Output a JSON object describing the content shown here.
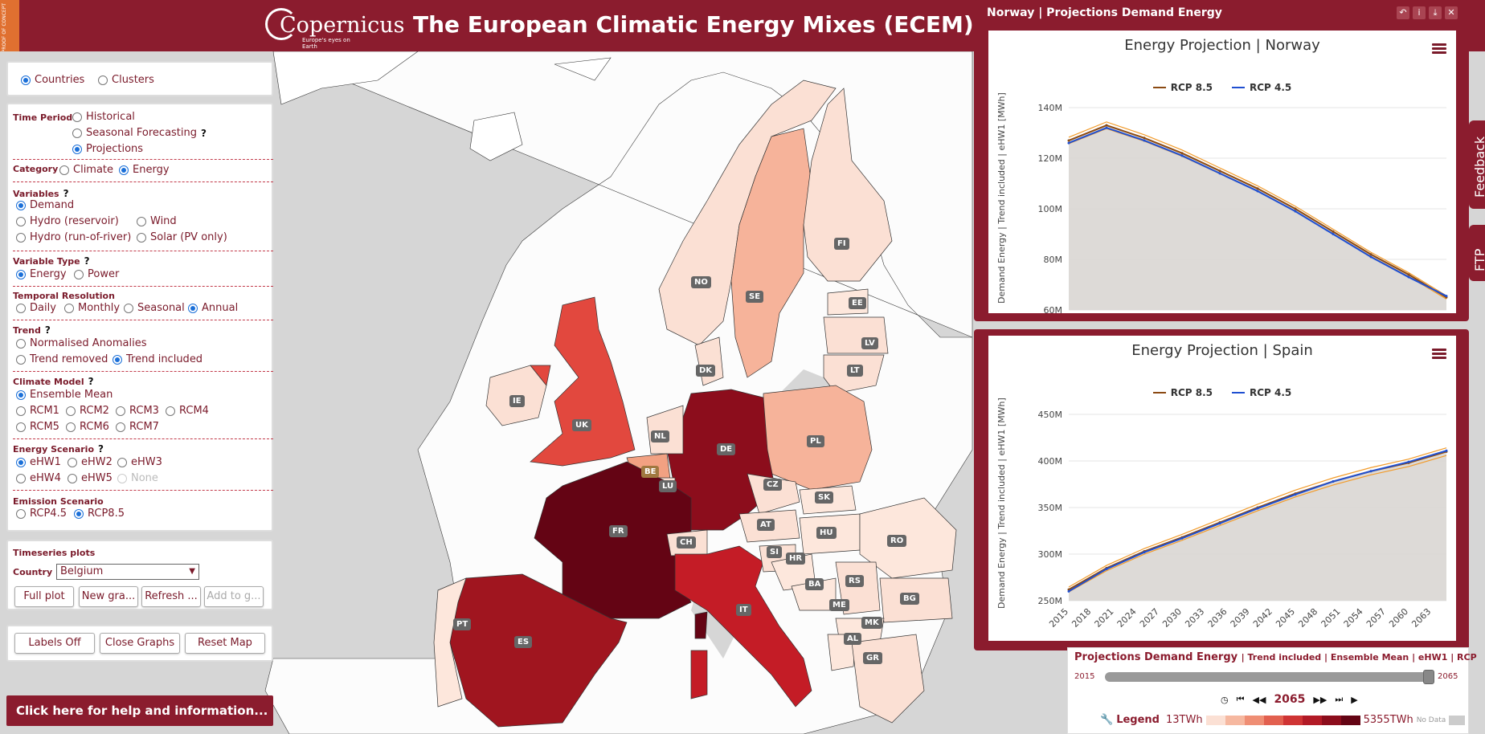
{
  "header": {
    "proof": "PROOF OF CONCEPT",
    "logo_name": "Copernicus",
    "logo_tag": "Europe's eyes on Earth",
    "title": "The European Climatic Energy Mixes (ECEM) Demo"
  },
  "geo_toggle": {
    "countries": "Countries",
    "clusters": "Clusters"
  },
  "controls": {
    "time_period": {
      "label": "Time Period",
      "options": [
        "Historical",
        "Seasonal Forecasting",
        "Projections"
      ]
    },
    "category": {
      "label": "Category",
      "options": [
        "Climate",
        "Energy"
      ]
    },
    "variables": {
      "label": "Variables",
      "options": [
        "Demand",
        "Hydro (reservoir)",
        "Wind",
        "Hydro (run-of-river)",
        "Solar (PV only)"
      ]
    },
    "variable_type": {
      "label": "Variable Type",
      "options": [
        "Energy",
        "Power"
      ]
    },
    "temporal_resolution": {
      "label": "Temporal Resolution",
      "options": [
        "Daily",
        "Monthly",
        "Seasonal",
        "Annual"
      ]
    },
    "trend": {
      "label": "Trend",
      "options": [
        "Normalised Anomalies",
        "Trend removed",
        "Trend included"
      ]
    },
    "climate_model": {
      "label": "Climate Model",
      "options": [
        "Ensemble Mean",
        "RCM1",
        "RCM2",
        "RCM3",
        "RCM4",
        "RCM5",
        "RCM6",
        "RCM7"
      ]
    },
    "energy_scenario": {
      "label": "Energy Scenario",
      "options": [
        "eHW1",
        "eHW2",
        "eHW3",
        "eHW4",
        "eHW5",
        "None"
      ]
    },
    "emission_scenario": {
      "label": "Emission Scenario",
      "options": [
        "RCP4.5",
        "RCP8.5"
      ]
    },
    "help_mark": "?"
  },
  "timeseries": {
    "label": "Timeseries plots",
    "country_label": "Country",
    "country_value": "Belgium",
    "buttons": [
      "Full plot",
      "New gra...",
      "Refresh ...",
      "Add to g..."
    ]
  },
  "map_buttons": [
    "Labels Off",
    "Close Graphs",
    "Reset Map"
  ],
  "help_bar": "Click here for help and information...",
  "countries": [
    "FI",
    "NO",
    "SE",
    "EE",
    "LV",
    "LT",
    "DK",
    "IE",
    "UK",
    "NL",
    "DE",
    "PL",
    "BE",
    "LU",
    "CZ",
    "SK",
    "FR",
    "CH",
    "AT",
    "HU",
    "RO",
    "SI",
    "HR",
    "BA",
    "RS",
    "ME",
    "BG",
    "MK",
    "AL",
    "IT",
    "GR",
    "ES",
    "PT"
  ],
  "graph1": {
    "window_title": "Norway | Projections Demand Energy",
    "icons": [
      "undo-icon",
      "info-icon",
      "download-icon",
      "close-icon"
    ],
    "icon_glyphs": [
      "↶",
      "i",
      "⤓",
      "✕"
    ]
  },
  "graph2": {},
  "side_tabs": {
    "feedback": "Feedback",
    "ftp": "FTP"
  },
  "bottom_bar": {
    "title": "Projections Demand Energy",
    "subtitle": "| Trend included | Ensemble Mean | eHW1 | RCP",
    "year_start": "2015",
    "year_end": "2065",
    "current_year": "2065",
    "legend_label": "Legend",
    "legend_min": "13TWh",
    "legend_max": "5355TWh",
    "no_data": "No Data",
    "legend_colors": [
      "#fbe0d4",
      "#f6b8a0",
      "#ef8e74",
      "#e2604f",
      "#cf3434",
      "#b21a26",
      "#8c0d1c",
      "#640414"
    ]
  },
  "chart_data": [
    {
      "type": "line",
      "title": "Energy Projection | Norway",
      "ylabel": "Demand Energy | Trend included | eHW1 [MWh]",
      "ylim": [
        60000000,
        140000000
      ],
      "yticks": [
        "60M",
        "80M",
        "100M",
        "120M",
        "140M"
      ],
      "x": [
        2015,
        2020,
        2025,
        2030,
        2035,
        2040,
        2045,
        2050,
        2055,
        2060,
        2065
      ],
      "series": [
        {
          "name": "RCP 8.5",
          "color": "#8b4a13",
          "values": [
            127000000,
            133000000,
            128000000,
            122000000,
            115000000,
            108000000,
            100000000,
            91000000,
            82000000,
            74000000,
            65000000
          ]
        },
        {
          "name": "RCP 4.5",
          "color": "#1f4fd1",
          "values": [
            126000000,
            132000000,
            127000000,
            121000000,
            114000000,
            107000000,
            99000000,
            90000000,
            81000000,
            73000000,
            65500000
          ]
        }
      ]
    },
    {
      "type": "line",
      "title": "Energy Projection | Spain",
      "ylabel": "Demand Energy | Trend included | eHW1 [MWh]",
      "ylim": [
        250000000,
        450000000
      ],
      "yticks": [
        "250M",
        "300M",
        "350M",
        "400M",
        "450M"
      ],
      "xticks": [
        "2015",
        "2018",
        "2021",
        "2024",
        "2027",
        "2030",
        "2033",
        "2036",
        "2039",
        "2042",
        "2045",
        "2048",
        "2051",
        "2054",
        "2057",
        "2060",
        "2063"
      ],
      "x": [
        2015,
        2020,
        2025,
        2030,
        2035,
        2040,
        2045,
        2050,
        2055,
        2060,
        2065
      ],
      "series": [
        {
          "name": "RCP 8.5",
          "color": "#8b4a13",
          "values": [
            262000000,
            285000000,
            303000000,
            318000000,
            334000000,
            350000000,
            365000000,
            378000000,
            389000000,
            398000000,
            410000000
          ]
        },
        {
          "name": "RCP 4.5",
          "color": "#1f4fd1",
          "values": [
            260000000,
            284000000,
            302000000,
            317000000,
            333000000,
            349000000,
            364000000,
            378000000,
            389000000,
            399000000,
            411000000
          ]
        }
      ]
    }
  ]
}
